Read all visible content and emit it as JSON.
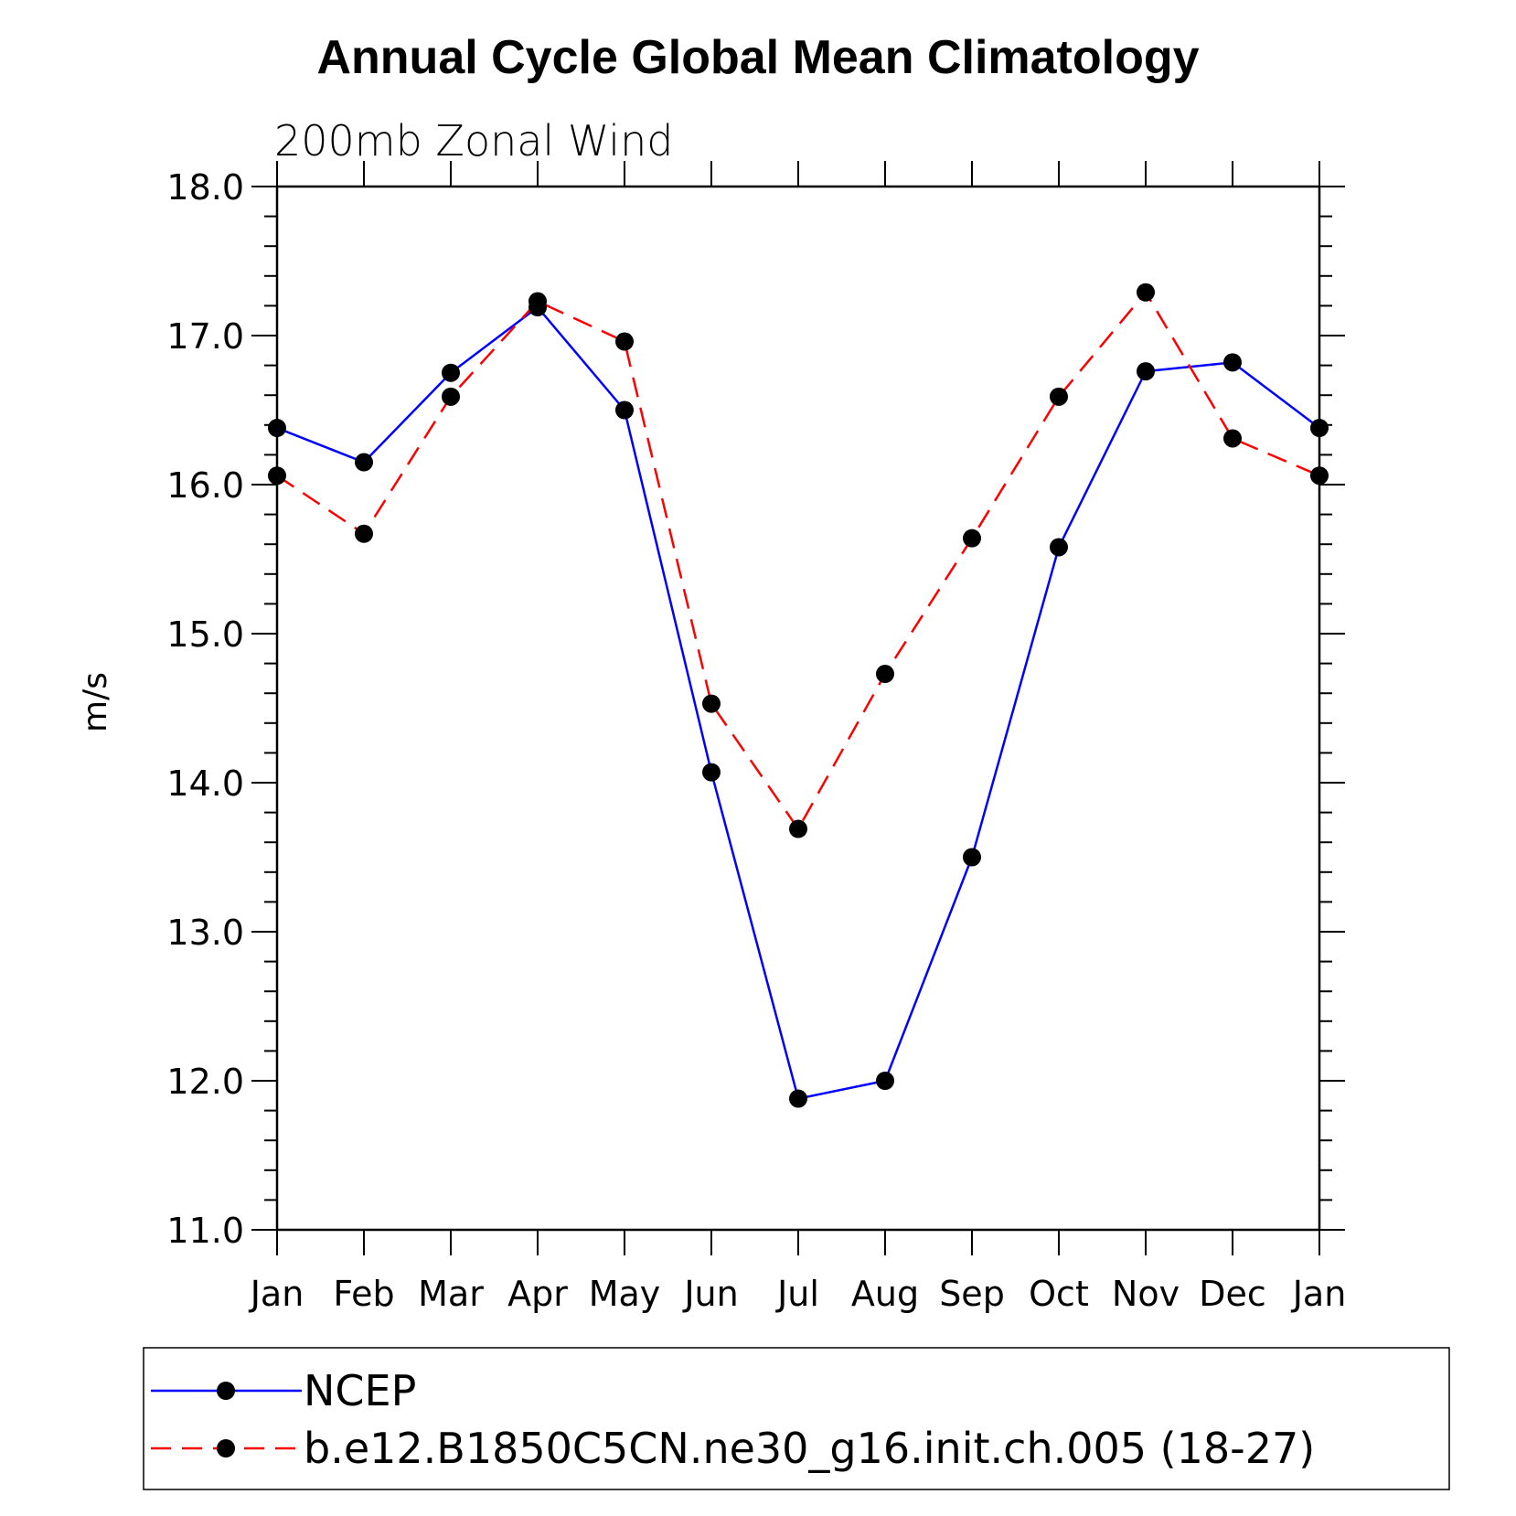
{
  "chart_data": {
    "type": "line",
    "title": "Annual Cycle Global Mean Climatology",
    "subtitle": "200mb Zonal Wind",
    "xlabel": "",
    "ylabel": "m/s",
    "categories": [
      "Jan",
      "Feb",
      "Mar",
      "Apr",
      "May",
      "Jun",
      "Jul",
      "Aug",
      "Sep",
      "Oct",
      "Nov",
      "Dec",
      "Jan"
    ],
    "ylim": [
      11.0,
      18.0
    ],
    "yticks": [
      "11.0",
      "12.0",
      "13.0",
      "14.0",
      "15.0",
      "16.0",
      "17.0",
      "18.0"
    ],
    "series": [
      {
        "name": "NCEP",
        "color": "#0000ff",
        "style": "solid",
        "marker": "filled-circle",
        "values": [
          16.38,
          16.15,
          16.75,
          17.19,
          16.5,
          14.07,
          11.88,
          12.0,
          13.5,
          15.58,
          16.76,
          16.82,
          16.38
        ]
      },
      {
        "name": "b.e12.B1850C5CN.ne30_g16.init.ch.005 (18-27)",
        "color": "#ff0000",
        "style": "dashed",
        "marker": "filled-circle",
        "values": [
          16.06,
          15.67,
          16.59,
          17.23,
          16.96,
          14.53,
          13.69,
          14.73,
          15.64,
          16.59,
          17.29,
          16.31,
          16.06
        ]
      }
    ],
    "legend_position": "bottom",
    "grid": false
  }
}
